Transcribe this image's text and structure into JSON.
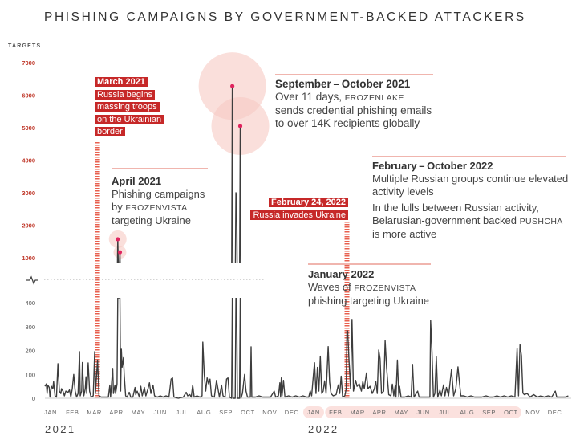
{
  "title": "PHISHING CAMPAIGNS BY GOVERNMENT-BACKED ATTACKERS",
  "colors": {
    "accent_red": "#c62828",
    "highlight_pink": "#f6c9c3",
    "line": "#3d3d3d",
    "dot": "#e0245e"
  },
  "chart_data": {
    "type": "line",
    "title": "PHISHING CAMPAIGNS BY GOVERNMENT-BACKED ATTACKERS",
    "ylabel": "TARGETS",
    "xlabel": "",
    "axis_break": true,
    "upper_axis": {
      "ylim": [
        1000,
        7000
      ],
      "ticks": [
        "7000",
        "6000",
        "5000",
        "4000",
        "3000",
        "2000",
        "1000"
      ]
    },
    "lower_axis": {
      "ylim": [
        0,
        400
      ],
      "ticks": [
        "400",
        "300",
        "200",
        "100",
        "0"
      ]
    },
    "xlim": [
      "2021-01-01",
      "2022-12-31"
    ],
    "x_ticks": [
      "JAN",
      "FEB",
      "MAR",
      "APR",
      "MAY",
      "JUN",
      "JUL",
      "AUG",
      "SEP",
      "OCT",
      "NOV",
      "DEC",
      "JAN",
      "FEB",
      "MAR",
      "APR",
      "MAY",
      "JUN",
      "JUL",
      "AUG",
      "SEP",
      "OCT",
      "NOV",
      "DEC"
    ],
    "years": [
      "2021",
      "2022"
    ],
    "highlighted_months_2022": [
      [
        "JAN"
      ],
      [
        "FEB",
        "MAR",
        "APR",
        "MAY",
        "JUN",
        "JUL",
        "AUG",
        "SEP",
        "OCT"
      ]
    ],
    "grid": false,
    "points": [
      [
        "2021-01-01",
        50
      ],
      [
        "2021-01-03",
        60
      ],
      [
        "2021-01-04",
        20
      ],
      [
        "2021-01-05",
        55
      ],
      [
        "2021-01-07",
        45
      ],
      [
        "2021-01-08",
        5
      ],
      [
        "2021-01-10",
        50
      ],
      [
        "2021-01-12",
        40
      ],
      [
        "2021-01-13",
        70
      ],
      [
        "2021-01-15",
        10
      ],
      [
        "2021-01-17",
        5
      ],
      [
        "2021-01-19",
        145
      ],
      [
        "2021-01-21",
        30
      ],
      [
        "2021-01-23",
        20
      ],
      [
        "2021-01-24",
        40
      ],
      [
        "2021-01-26",
        30
      ],
      [
        "2021-01-28",
        10
      ],
      [
        "2021-01-30",
        30
      ],
      [
        "2021-02-02",
        25
      ],
      [
        "2021-02-04",
        35
      ],
      [
        "2021-02-06",
        5
      ],
      [
        "2021-02-08",
        40
      ],
      [
        "2021-02-10",
        100
      ],
      [
        "2021-02-12",
        30
      ],
      [
        "2021-02-14",
        5
      ],
      [
        "2021-02-16",
        20
      ],
      [
        "2021-02-18",
        195
      ],
      [
        "2021-02-19",
        10
      ],
      [
        "2021-02-21",
        30
      ],
      [
        "2021-02-22",
        150
      ],
      [
        "2021-02-24",
        10
      ],
      [
        "2021-02-26",
        40
      ],
      [
        "2021-02-27",
        90
      ],
      [
        "2021-02-28",
        20
      ],
      [
        "2021-03-02",
        148
      ],
      [
        "2021-03-04",
        30
      ],
      [
        "2021-03-06",
        5
      ],
      [
        "2021-03-09",
        10
      ],
      [
        "2021-03-11",
        195
      ],
      [
        "2021-03-12",
        20
      ],
      [
        "2021-03-15",
        160
      ],
      [
        "2021-03-17",
        10
      ],
      [
        "2021-03-20",
        5
      ],
      [
        "2021-03-25",
        5
      ],
      [
        "2021-03-30",
        5
      ],
      [
        "2021-04-01",
        55
      ],
      [
        "2021-04-02",
        5
      ],
      [
        "2021-04-05",
        125
      ],
      [
        "2021-04-06",
        20
      ],
      [
        "2021-04-08",
        55
      ],
      [
        "2021-04-09",
        20
      ],
      [
        "2021-04-11",
        60
      ],
      [
        "2021-04-12",
        1570
      ],
      [
        "2021-04-13",
        450
      ],
      [
        "2021-04-14",
        600
      ],
      [
        "2021-04-15",
        1170
      ],
      [
        "2021-04-16",
        30
      ],
      [
        "2021-04-17",
        205
      ],
      [
        "2021-04-18",
        130
      ],
      [
        "2021-04-20",
        170
      ],
      [
        "2021-04-21",
        100
      ],
      [
        "2021-04-23",
        10
      ],
      [
        "2021-04-25",
        5
      ],
      [
        "2021-04-28",
        25
      ],
      [
        "2021-04-30",
        5
      ],
      [
        "2021-05-03",
        5
      ],
      [
        "2021-05-06",
        45
      ],
      [
        "2021-05-07",
        15
      ],
      [
        "2021-05-09",
        30
      ],
      [
        "2021-05-12",
        5
      ],
      [
        "2021-05-14",
        50
      ],
      [
        "2021-05-16",
        10
      ],
      [
        "2021-05-19",
        45
      ],
      [
        "2021-05-21",
        10
      ],
      [
        "2021-05-24",
        40
      ],
      [
        "2021-05-26",
        65
      ],
      [
        "2021-05-28",
        20
      ],
      [
        "2021-05-31",
        55
      ],
      [
        "2021-06-02",
        10
      ],
      [
        "2021-06-06",
        5
      ],
      [
        "2021-06-10",
        10
      ],
      [
        "2021-06-14",
        5
      ],
      [
        "2021-06-18",
        10
      ],
      [
        "2021-06-22",
        5
      ],
      [
        "2021-06-25",
        80
      ],
      [
        "2021-06-27",
        85
      ],
      [
        "2021-06-29",
        5
      ],
      [
        "2021-07-05",
        0
      ],
      [
        "2021-07-12",
        5
      ],
      [
        "2021-07-16",
        25
      ],
      [
        "2021-07-18",
        10
      ],
      [
        "2021-07-21",
        15
      ],
      [
        "2021-07-23",
        5
      ],
      [
        "2021-07-25",
        55
      ],
      [
        "2021-07-27",
        5
      ],
      [
        "2021-07-31",
        10
      ],
      [
        "2021-08-04",
        5
      ],
      [
        "2021-08-07",
        10
      ],
      [
        "2021-08-08",
        235
      ],
      [
        "2021-08-10",
        100
      ],
      [
        "2021-08-12",
        30
      ],
      [
        "2021-08-14",
        85
      ],
      [
        "2021-08-16",
        60
      ],
      [
        "2021-08-18",
        80
      ],
      [
        "2021-08-20",
        10
      ],
      [
        "2021-08-24",
        5
      ],
      [
        "2021-08-27",
        75
      ],
      [
        "2021-08-29",
        40
      ],
      [
        "2021-08-31",
        5
      ],
      [
        "2021-09-03",
        55
      ],
      [
        "2021-09-05",
        10
      ],
      [
        "2021-09-08",
        5
      ],
      [
        "2021-09-10",
        80
      ],
      [
        "2021-09-12",
        85
      ],
      [
        "2021-09-14",
        5
      ],
      [
        "2021-09-17",
        0
      ],
      [
        "2021-09-18",
        6280
      ],
      [
        "2021-09-19",
        0
      ],
      [
        "2021-09-22",
        0
      ],
      [
        "2021-09-23",
        3000
      ],
      [
        "2021-09-24",
        2900
      ],
      [
        "2021-09-25",
        0
      ],
      [
        "2021-09-28",
        0
      ],
      [
        "2021-09-29",
        5050
      ],
      [
        "2021-09-30",
        0
      ],
      [
        "2021-10-02",
        20
      ],
      [
        "2021-10-05",
        100
      ],
      [
        "2021-10-07",
        30
      ],
      [
        "2021-10-09",
        5
      ],
      [
        "2021-10-13",
        5
      ],
      [
        "2021-10-14",
        215
      ],
      [
        "2021-10-15",
        5
      ],
      [
        "2021-10-20",
        5
      ],
      [
        "2021-10-25",
        10
      ],
      [
        "2021-10-30",
        5
      ],
      [
        "2021-11-04",
        5
      ],
      [
        "2021-11-10",
        5
      ],
      [
        "2021-11-15",
        30
      ],
      [
        "2021-11-17",
        5
      ],
      [
        "2021-11-21",
        10
      ],
      [
        "2021-11-23",
        65
      ],
      [
        "2021-11-24",
        5
      ],
      [
        "2021-11-25",
        85
      ],
      [
        "2021-11-26",
        10
      ],
      [
        "2021-11-28",
        75
      ],
      [
        "2021-11-30",
        5
      ],
      [
        "2021-12-05",
        10
      ],
      [
        "2021-12-10",
        5
      ],
      [
        "2021-12-15",
        10
      ],
      [
        "2021-12-20",
        5
      ],
      [
        "2021-12-25",
        10
      ],
      [
        "2021-12-30",
        5
      ],
      [
        "2022-01-02",
        5
      ],
      [
        "2022-01-04",
        31
      ],
      [
        "2022-01-06",
        10
      ],
      [
        "2022-01-09",
        118
      ],
      [
        "2022-01-10",
        149
      ],
      [
        "2022-01-12",
        20
      ],
      [
        "2022-01-14",
        129
      ],
      [
        "2022-01-16",
        30
      ],
      [
        "2022-01-18",
        176
      ],
      [
        "2022-01-20",
        20
      ],
      [
        "2022-01-22",
        30
      ],
      [
        "2022-01-24",
        73
      ],
      [
        "2022-01-26",
        20
      ],
      [
        "2022-01-29",
        216
      ],
      [
        "2022-01-31",
        67
      ],
      [
        "2022-02-02",
        20
      ],
      [
        "2022-02-05",
        10
      ],
      [
        "2022-02-09",
        15
      ],
      [
        "2022-02-12",
        56
      ],
      [
        "2022-02-14",
        20
      ],
      [
        "2022-02-16",
        92
      ],
      [
        "2022-02-18",
        5
      ],
      [
        "2022-02-21",
        10
      ],
      [
        "2022-02-23",
        40
      ],
      [
        "2022-02-24",
        285
      ],
      [
        "2022-02-25",
        280
      ],
      [
        "2022-02-27",
        150
      ],
      [
        "2022-03-01",
        40
      ],
      [
        "2022-03-03",
        330
      ],
      [
        "2022-03-05",
        30
      ],
      [
        "2022-03-08",
        75
      ],
      [
        "2022-03-10",
        50
      ],
      [
        "2022-03-13",
        60
      ],
      [
        "2022-03-16",
        30
      ],
      [
        "2022-03-18",
        70
      ],
      [
        "2022-03-20",
        40
      ],
      [
        "2022-03-23",
        106
      ],
      [
        "2022-03-25",
        40
      ],
      [
        "2022-03-28",
        50
      ],
      [
        "2022-03-31",
        20
      ],
      [
        "2022-04-03",
        40
      ],
      [
        "2022-04-05",
        70
      ],
      [
        "2022-04-07",
        20
      ],
      [
        "2022-04-09",
        202
      ],
      [
        "2022-04-11",
        165
      ],
      [
        "2022-04-13",
        20
      ],
      [
        "2022-04-16",
        30
      ],
      [
        "2022-04-18",
        241
      ],
      [
        "2022-04-20",
        129
      ],
      [
        "2022-04-23",
        15
      ],
      [
        "2022-04-26",
        10
      ],
      [
        "2022-04-28",
        59
      ],
      [
        "2022-04-30",
        10
      ],
      [
        "2022-05-02",
        53
      ],
      [
        "2022-05-03",
        5
      ],
      [
        "2022-05-05",
        160
      ],
      [
        "2022-05-07",
        5
      ],
      [
        "2022-05-08",
        50
      ],
      [
        "2022-05-10",
        5
      ],
      [
        "2022-05-15",
        5
      ],
      [
        "2022-05-20",
        10
      ],
      [
        "2022-05-24",
        5
      ],
      [
        "2022-05-26",
        142
      ],
      [
        "2022-05-28",
        5
      ],
      [
        "2022-06-02",
        30
      ],
      [
        "2022-06-04",
        5
      ],
      [
        "2022-06-10",
        5
      ],
      [
        "2022-06-16",
        5
      ],
      [
        "2022-06-19",
        5
      ],
      [
        "2022-06-20",
        325
      ],
      [
        "2022-06-22",
        196
      ],
      [
        "2022-06-24",
        5
      ],
      [
        "2022-06-26",
        20
      ],
      [
        "2022-06-28",
        174
      ],
      [
        "2022-06-30",
        5
      ],
      [
        "2022-07-03",
        34
      ],
      [
        "2022-07-05",
        10
      ],
      [
        "2022-07-08",
        56
      ],
      [
        "2022-07-10",
        10
      ],
      [
        "2022-07-12",
        45
      ],
      [
        "2022-07-15",
        10
      ],
      [
        "2022-07-19",
        120
      ],
      [
        "2022-07-22",
        10
      ],
      [
        "2022-07-25",
        39
      ],
      [
        "2022-07-28",
        131
      ],
      [
        "2022-07-30",
        67
      ],
      [
        "2022-08-01",
        10
      ],
      [
        "2022-08-05",
        10
      ],
      [
        "2022-08-10",
        5
      ],
      [
        "2022-08-15",
        10
      ],
      [
        "2022-08-20",
        5
      ],
      [
        "2022-08-25",
        5
      ],
      [
        "2022-08-30",
        5
      ],
      [
        "2022-09-05",
        10
      ],
      [
        "2022-09-10",
        5
      ],
      [
        "2022-09-15",
        5
      ],
      [
        "2022-09-20",
        10
      ],
      [
        "2022-09-25",
        5
      ],
      [
        "2022-09-30",
        10
      ],
      [
        "2022-10-05",
        5
      ],
      [
        "2022-10-10",
        10
      ],
      [
        "2022-10-15",
        5
      ],
      [
        "2022-10-18",
        209
      ],
      [
        "2022-10-20",
        10
      ],
      [
        "2022-10-22",
        224
      ],
      [
        "2022-10-24",
        179
      ],
      [
        "2022-10-26",
        22
      ],
      [
        "2022-10-28",
        15
      ],
      [
        "2022-11-01",
        20
      ],
      [
        "2022-11-05",
        5
      ],
      [
        "2022-11-10",
        15
      ],
      [
        "2022-11-15",
        5
      ],
      [
        "2022-11-20",
        10
      ],
      [
        "2022-11-25",
        5
      ],
      [
        "2022-11-30",
        10
      ],
      [
        "2022-12-05",
        5
      ],
      [
        "2022-12-10",
        30
      ],
      [
        "2022-12-12",
        5
      ],
      [
        "2022-12-18",
        5
      ],
      [
        "2022-12-24",
        5
      ],
      [
        "2022-12-28",
        10
      ]
    ],
    "highlighted_peaks": [
      [
        "2021-04-12",
        1570
      ],
      [
        "2021-04-15",
        1170
      ],
      [
        "2021-09-18",
        6280
      ],
      [
        "2021-09-29",
        5050
      ]
    ],
    "event_markers": [
      "2021-03-15",
      "2022-02-24"
    ]
  },
  "annotations": {
    "march2021": {
      "heading": "March 2021",
      "lines": [
        "Russia begins",
        "massing troops",
        "on the Ukrainian",
        "border"
      ]
    },
    "april2021": {
      "heading": "April 2021",
      "pre": "Phishing campaigns by ",
      "actor": "FROZENVISTA",
      "post": " targeting Ukraine"
    },
    "sepoct2021": {
      "heading": "September – October 2021",
      "pre": "Over 11 days, ",
      "actor": "FROZENLAKE",
      "post": " sends credential phishing emails to over 14K recipients globally"
    },
    "feb24_2022": {
      "heading": "February 24, 2022",
      "text": "Russia invades Ukraine"
    },
    "febOct2022": {
      "heading": "February – October 2022",
      "para1": "Multiple Russian groups continue elevated activity levels",
      "pre": "In the lulls between Russian activity, Belarusian-government backed ",
      "actor": "PUSHCHA",
      "post": " is more active"
    },
    "jan2022": {
      "heading": "January 2022",
      "pre": "Waves of ",
      "actor": "FROZENVISTA",
      "post": " phishing targeting Ukraine"
    }
  }
}
